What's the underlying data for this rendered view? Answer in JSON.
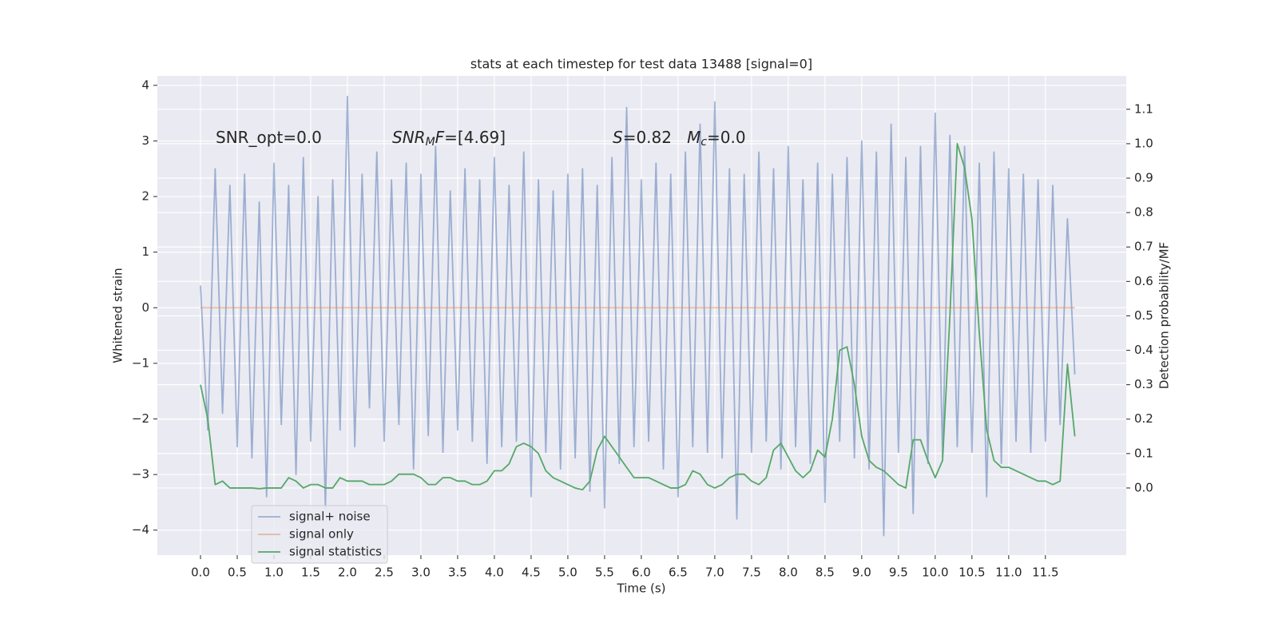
{
  "chart_data": {
    "type": "line",
    "title": "stats at each timestep for test data 13488 [signal=0]",
    "x_label": "Time (s)",
    "y_label": "Whitened strain",
    "y2_label": "Detection probability/MF",
    "x": [
      0,
      0.1,
      0.2,
      0.3,
      0.4,
      0.5,
      0.6,
      0.7,
      0.8,
      0.9,
      1,
      1.1,
      1.2,
      1.3,
      1.4,
      1.5,
      1.6,
      1.7,
      1.8,
      1.9,
      2,
      2.1,
      2.2,
      2.3,
      2.4,
      2.5,
      2.6,
      2.7,
      2.8,
      2.9,
      3,
      3.1,
      3.2,
      3.3,
      3.4,
      3.5,
      3.6,
      3.7,
      3.8,
      3.9,
      4,
      4.1,
      4.2,
      4.3,
      4.4,
      4.5,
      4.6,
      4.7,
      4.8,
      4.9,
      5,
      5.1,
      5.2,
      5.3,
      5.4,
      5.5,
      5.6,
      5.7,
      5.8,
      5.9,
      6,
      6.1,
      6.2,
      6.3,
      6.4,
      6.5,
      6.6,
      6.7,
      6.8,
      6.9,
      7,
      7.1,
      7.2,
      7.3,
      7.4,
      7.5,
      7.6,
      7.7,
      7.8,
      7.9,
      8,
      8.1,
      8.2,
      8.3,
      8.4,
      8.5,
      8.6,
      8.7,
      8.8,
      8.9,
      9,
      9.1,
      9.2,
      9.3,
      9.4,
      9.5,
      9.6,
      9.7,
      9.8,
      9.9,
      10,
      10.1,
      10.2,
      10.3,
      10.4,
      10.5,
      10.6,
      10.7,
      10.8,
      10.9,
      11,
      11.1,
      11.2,
      11.3,
      11.4,
      11.5,
      11.6,
      11.7,
      11.8,
      11.9
    ],
    "series": [
      {
        "name": "signal+ noise",
        "color": "#4c72b0",
        "alpha": 0.5,
        "values": [
          0.4,
          -2.2,
          2.5,
          -1.9,
          2.2,
          -2.5,
          2.4,
          -2.7,
          1.9,
          -3.4,
          2.6,
          -2.1,
          2.2,
          -3.0,
          2.7,
          -2.4,
          2.0,
          -3.6,
          2.3,
          -2.2,
          3.8,
          -2.5,
          2.4,
          -1.8,
          2.8,
          -2.4,
          2.3,
          -2.1,
          2.6,
          -2.9,
          2.4,
          -2.3,
          2.9,
          -2.6,
          2.1,
          -2.2,
          2.5,
          -2.4,
          2.3,
          -2.8,
          2.7,
          -2.5,
          2.2,
          -2.4,
          2.8,
          -3.4,
          2.3,
          -2.6,
          2.1,
          -2.9,
          2.4,
          -2.7,
          2.5,
          -3.3,
          2.2,
          -3.6,
          2.7,
          -2.8,
          3.6,
          -2.5,
          2.3,
          -2.4,
          2.6,
          -2.9,
          2.4,
          -3.4,
          2.8,
          -2.5,
          3.3,
          -2.6,
          3.7,
          -2.7,
          2.5,
          -3.8,
          2.4,
          -2.6,
          2.8,
          -2.4,
          2.5,
          -2.9,
          2.9,
          -2.5,
          2.3,
          -2.8,
          2.6,
          -3.5,
          2.4,
          -2.4,
          2.7,
          -2.7,
          3.0,
          -2.9,
          2.8,
          -4.1,
          3.3,
          -2.6,
          2.7,
          -3.7,
          2.9,
          -2.8,
          3.5,
          -2.7,
          3.1,
          -2.5,
          2.9,
          -2.6,
          2.6,
          -3.4,
          2.8,
          -2.8,
          2.5,
          -2.4,
          2.4,
          -2.6,
          2.3,
          -2.4,
          2.2,
          -2.1,
          1.6,
          -1.2
        ]
      },
      {
        "name": "signal only",
        "color": "#dd8452",
        "alpha": 0.5,
        "values": [
          0,
          0,
          0,
          0,
          0,
          0,
          0,
          0,
          0,
          0,
          0,
          0,
          0,
          0,
          0,
          0,
          0,
          0,
          0,
          0,
          0,
          0,
          0,
          0,
          0,
          0,
          0,
          0,
          0,
          0,
          0,
          0,
          0,
          0,
          0,
          0,
          0,
          0,
          0,
          0,
          0,
          0,
          0,
          0,
          0,
          0,
          0,
          0,
          0,
          0,
          0,
          0,
          0,
          0,
          0,
          0,
          0,
          0,
          0,
          0,
          0,
          0,
          0,
          0,
          0,
          0,
          0,
          0,
          0,
          0,
          0,
          0,
          0,
          0,
          0,
          0,
          0,
          0,
          0,
          0,
          0,
          0,
          0,
          0,
          0,
          0,
          0,
          0,
          0,
          0,
          0,
          0,
          0,
          0,
          0,
          0,
          0,
          0,
          0,
          0,
          0,
          0,
          0,
          0,
          0,
          0,
          0,
          0,
          0,
          0,
          0,
          0,
          0,
          0,
          0,
          0,
          0,
          0,
          0,
          0
        ]
      },
      {
        "name": "signal statistics",
        "color": "#55a868",
        "alpha": 1,
        "axis": "y2",
        "values": [
          0.3,
          0.2,
          0.01,
          0.02,
          0.0,
          0.0,
          0.0,
          0.0,
          -0.002,
          0.0,
          0.0,
          0.0,
          0.03,
          0.02,
          0.0,
          0.01,
          0.01,
          0.0,
          0.0,
          0.03,
          0.02,
          0.02,
          0.02,
          0.01,
          0.01,
          0.01,
          0.02,
          0.04,
          0.04,
          0.04,
          0.03,
          0.01,
          0.01,
          0.03,
          0.03,
          0.02,
          0.02,
          0.01,
          0.01,
          0.02,
          0.05,
          0.05,
          0.07,
          0.12,
          0.13,
          0.12,
          0.1,
          0.05,
          0.03,
          0.02,
          0.01,
          0.0,
          -0.005,
          0.02,
          0.11,
          0.15,
          0.12,
          0.09,
          0.06,
          0.03,
          0.03,
          0.03,
          0.02,
          0.01,
          0.0,
          0.0,
          0.01,
          0.05,
          0.04,
          0.01,
          0.0,
          0.01,
          0.03,
          0.04,
          0.04,
          0.02,
          0.01,
          0.03,
          0.11,
          0.13,
          0.09,
          0.05,
          0.03,
          0.05,
          0.11,
          0.09,
          0.2,
          0.4,
          0.41,
          0.3,
          0.15,
          0.08,
          0.06,
          0.05,
          0.03,
          0.01,
          0.0,
          0.14,
          0.14,
          0.08,
          0.03,
          0.08,
          0.5,
          1.0,
          0.93,
          0.78,
          0.45,
          0.17,
          0.08,
          0.06,
          0.06,
          0.05,
          0.04,
          0.03,
          0.02,
          0.02,
          0.01,
          0.02,
          0.36,
          0.15
        ]
      }
    ],
    "annotations": [
      {
        "parts": [
          {
            "text": "SNR_opt=0.0"
          }
        ]
      },
      {
        "parts": [
          {
            "text": "SNR",
            "italic": true
          },
          {
            "text": "M",
            "italic": true,
            "sub": true
          },
          {
            "text": "F",
            "italic": true
          },
          {
            "text": "=[4.69]"
          }
        ]
      },
      {
        "parts": [
          {
            "text": "S",
            "italic": true
          },
          {
            "text": "=0.82   "
          },
          {
            "text": "M",
            "italic": true
          },
          {
            "text": "c",
            "italic": true,
            "sub": true
          },
          {
            "text": "=0.0"
          }
        ]
      }
    ],
    "xlim": [
      -0.587,
      12.6
    ],
    "ylim": [
      -4.45,
      4.17
    ],
    "y2lim": [
      -0.195,
      1.197
    ],
    "xticks": [
      {
        "value": 0,
        "label": "0.0"
      },
      0.5,
      {
        "value": 1,
        "label": "1.0"
      },
      1.5,
      {
        "value": 2,
        "label": "2.0"
      },
      2.5,
      {
        "value": 3,
        "label": "3.0"
      },
      3.5,
      {
        "value": 4,
        "label": "4.0"
      },
      4.5,
      {
        "value": 5,
        "label": "5.0"
      },
      5.5,
      {
        "value": 6,
        "label": "6.0"
      },
      6.5,
      {
        "value": 7,
        "label": "7.0"
      },
      7.5,
      {
        "value": 8,
        "label": "8.0"
      },
      8.5,
      {
        "value": 9,
        "label": "9.0"
      },
      9.5,
      {
        "value": 10,
        "label": "10.0"
      },
      10.5,
      {
        "value": 11,
        "label": "11.0"
      },
      11.5
    ],
    "yticks": [
      {
        "value": -4,
        "label": "−4"
      },
      {
        "value": -3,
        "label": "−3"
      },
      {
        "value": -2,
        "label": "−2"
      },
      {
        "value": -1,
        "label": "−1"
      },
      0,
      1,
      2,
      3,
      4
    ],
    "y2ticks": [
      {
        "value": 0,
        "label": "0.0"
      },
      0.1,
      0.2,
      0.3,
      0.4,
      0.5,
      0.6,
      0.7,
      0.8,
      0.9,
      {
        "value": 1,
        "label": "1.0"
      },
      1.1
    ],
    "grid": true,
    "legend_loc": "lower left"
  }
}
